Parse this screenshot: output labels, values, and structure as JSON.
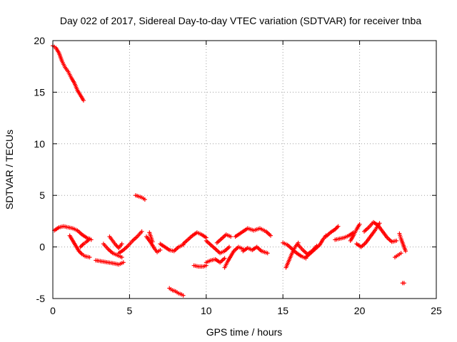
{
  "chart_data": {
    "type": "scatter",
    "title": "Day 022 of 2017, Sidereal Day-to-day VTEC variation (SDTVAR) for receiver tnba",
    "xlabel": "GPS time / hours",
    "ylabel": "SDTVAR / TECUs",
    "xlim": [
      0,
      25
    ],
    "ylim": [
      -5,
      20
    ],
    "xticks": [
      0,
      5,
      10,
      15,
      20,
      25
    ],
    "yticks": [
      -5,
      0,
      5,
      10,
      15,
      20
    ],
    "grid": true,
    "marker": "plus",
    "color": "#ff0000",
    "series": [
      {
        "name": "SDTVAR",
        "segments": [
          [
            [
              0.0,
              19.5
            ],
            [
              0.2,
              19.3
            ],
            [
              0.4,
              18.8
            ],
            [
              0.6,
              18.0
            ],
            [
              0.8,
              17.4
            ],
            [
              1.0,
              17.0
            ],
            [
              1.2,
              16.4
            ],
            [
              1.4,
              15.9
            ],
            [
              1.6,
              15.2
            ],
            [
              1.8,
              14.7
            ],
            [
              2.0,
              14.2
            ]
          ],
          [
            [
              0.1,
              1.6
            ],
            [
              0.4,
              1.9
            ],
            [
              0.7,
              2.0
            ],
            [
              1.0,
              1.9
            ],
            [
              1.3,
              1.8
            ],
            [
              1.6,
              1.6
            ],
            [
              1.9,
              1.2
            ],
            [
              2.2,
              0.9
            ],
            [
              2.5,
              0.7
            ]
          ],
          [
            [
              1.1,
              1.1
            ],
            [
              1.3,
              0.6
            ],
            [
              1.5,
              0.1
            ],
            [
              1.7,
              -0.4
            ],
            [
              1.9,
              -0.7
            ],
            [
              2.1,
              -0.9
            ],
            [
              2.4,
              -1.0
            ]
          ],
          [
            [
              1.8,
              0.0
            ],
            [
              2.0,
              0.3
            ],
            [
              2.2,
              0.5
            ],
            [
              2.4,
              0.8
            ]
          ],
          [
            [
              2.8,
              -1.3
            ],
            [
              3.2,
              -1.4
            ],
            [
              3.6,
              -1.5
            ],
            [
              4.0,
              -1.6
            ],
            [
              4.3,
              -1.7
            ],
            [
              4.6,
              -1.5
            ]
          ],
          [
            [
              3.3,
              0.3
            ],
            [
              3.6,
              -0.2
            ],
            [
              3.9,
              -0.6
            ],
            [
              4.2,
              -0.8
            ],
            [
              4.5,
              -1.0
            ]
          ],
          [
            [
              3.7,
              1.0
            ],
            [
              3.9,
              0.6
            ],
            [
              4.1,
              0.2
            ],
            [
              4.3,
              -0.1
            ],
            [
              4.5,
              0.3
            ]
          ],
          [
            [
              4.3,
              -0.6
            ],
            [
              4.6,
              -0.3
            ],
            [
              4.9,
              0.1
            ],
            [
              5.2,
              0.6
            ],
            [
              5.5,
              1.0
            ],
            [
              5.8,
              1.5
            ]
          ],
          [
            [
              5.4,
              5.0
            ],
            [
              5.6,
              4.9
            ],
            [
              5.8,
              4.8
            ],
            [
              6.0,
              4.6
            ]
          ],
          [
            [
              6.1,
              1.0
            ],
            [
              6.4,
              0.4
            ],
            [
              6.6,
              -0.1
            ],
            [
              6.8,
              -0.5
            ],
            [
              7.0,
              -0.3
            ]
          ],
          [
            [
              6.3,
              1.4
            ],
            [
              6.5,
              0.5
            ]
          ],
          [
            [
              7.0,
              0.3
            ],
            [
              7.3,
              0.0
            ],
            [
              7.6,
              -0.3
            ],
            [
              7.9,
              -0.4
            ],
            [
              8.2,
              0.0
            ],
            [
              8.5,
              0.2
            ]
          ],
          [
            [
              7.6,
              -4.0
            ],
            [
              7.8,
              -4.2
            ],
            [
              8.0,
              -4.3
            ],
            [
              8.2,
              -4.5
            ],
            [
              8.4,
              -4.6
            ],
            [
              8.5,
              -4.7
            ]
          ],
          [
            [
              8.5,
              0.3
            ],
            [
              8.8,
              0.7
            ],
            [
              9.1,
              1.1
            ],
            [
              9.4,
              1.4
            ],
            [
              9.7,
              1.2
            ],
            [
              10.0,
              0.9
            ]
          ],
          [
            [
              9.2,
              -1.8
            ],
            [
              9.5,
              -1.9
            ],
            [
              9.8,
              -1.9
            ],
            [
              10.0,
              -1.8
            ]
          ],
          [
            [
              10.0,
              0.6
            ],
            [
              10.3,
              0.2
            ],
            [
              10.6,
              -0.2
            ],
            [
              10.9,
              -0.6
            ],
            [
              11.2,
              -0.4
            ],
            [
              11.5,
              0.0
            ]
          ],
          [
            [
              10.0,
              -1.5
            ],
            [
              10.3,
              -1.3
            ],
            [
              10.6,
              -1.2
            ],
            [
              10.9,
              -1.5
            ],
            [
              11.2,
              -1.1
            ]
          ],
          [
            [
              10.7,
              0.4
            ],
            [
              11.0,
              0.8
            ],
            [
              11.3,
              1.2
            ],
            [
              11.6,
              1.0
            ]
          ],
          [
            [
              11.2,
              -2.0
            ],
            [
              11.4,
              -1.4
            ],
            [
              11.6,
              -0.9
            ],
            [
              11.8,
              -0.4
            ],
            [
              12.1,
              0.0
            ],
            [
              12.4,
              -0.2
            ]
          ],
          [
            [
              11.9,
              1.0
            ],
            [
              12.3,
              1.4
            ],
            [
              12.7,
              1.8
            ],
            [
              13.1,
              1.6
            ],
            [
              13.5,
              1.8
            ],
            [
              13.9,
              1.5
            ],
            [
              14.2,
              1.1
            ]
          ],
          [
            [
              12.4,
              -0.4
            ],
            [
              12.7,
              -0.1
            ],
            [
              13.0,
              -0.3
            ],
            [
              13.3,
              0.0
            ],
            [
              13.6,
              -0.4
            ],
            [
              14.0,
              -0.6
            ]
          ],
          [
            [
              15.0,
              0.4
            ],
            [
              15.3,
              0.2
            ],
            [
              15.6,
              -0.2
            ],
            [
              15.9,
              -0.6
            ],
            [
              16.2,
              -0.9
            ],
            [
              16.5,
              -1.1
            ]
          ],
          [
            [
              15.2,
              -2.0
            ],
            [
              15.4,
              -1.3
            ],
            [
              15.6,
              -0.6
            ],
            [
              15.8,
              0.0
            ],
            [
              16.0,
              0.4
            ]
          ],
          [
            [
              16.0,
              0.2
            ],
            [
              16.3,
              -0.3
            ],
            [
              16.6,
              -0.7
            ],
            [
              16.9,
              -0.4
            ],
            [
              17.2,
              0.1
            ]
          ],
          [
            [
              16.5,
              -1.0
            ],
            [
              16.8,
              -0.6
            ],
            [
              17.1,
              -0.2
            ],
            [
              17.4,
              0.2
            ],
            [
              17.6,
              0.7
            ],
            [
              17.8,
              1.1
            ]
          ],
          [
            [
              17.8,
              1.0
            ],
            [
              18.1,
              1.4
            ],
            [
              18.4,
              1.7
            ],
            [
              18.6,
              2.0
            ]
          ],
          [
            [
              18.4,
              0.7
            ],
            [
              18.7,
              0.8
            ],
            [
              19.0,
              0.9
            ],
            [
              19.3,
              1.1
            ],
            [
              19.6,
              1.4
            ]
          ],
          [
            [
              19.4,
              0.6
            ],
            [
              19.6,
              1.1
            ],
            [
              19.8,
              1.7
            ],
            [
              20.0,
              2.2
            ]
          ],
          [
            [
              19.8,
              0.3
            ],
            [
              20.1,
              0.0
            ],
            [
              20.4,
              0.4
            ],
            [
              20.7,
              1.0
            ],
            [
              21.0,
              1.6
            ],
            [
              21.3,
              2.3
            ]
          ],
          [
            [
              20.3,
              1.5
            ],
            [
              20.6,
              1.9
            ],
            [
              20.9,
              2.4
            ],
            [
              21.2,
              2.1
            ],
            [
              21.5,
              1.5
            ],
            [
              21.8,
              0.9
            ],
            [
              22.1,
              0.5
            ],
            [
              22.4,
              0.6
            ]
          ],
          [
            [
              22.6,
              1.3
            ],
            [
              22.7,
              0.8
            ],
            [
              22.8,
              0.4
            ],
            [
              22.9,
              0.0
            ],
            [
              23.0,
              -0.4
            ]
          ],
          [
            [
              22.3,
              -1.0
            ],
            [
              22.5,
              -0.8
            ],
            [
              22.7,
              -0.6
            ]
          ],
          [
            [
              22.8,
              -3.5
            ],
            [
              22.9,
              -3.5
            ]
          ]
        ]
      }
    ]
  }
}
